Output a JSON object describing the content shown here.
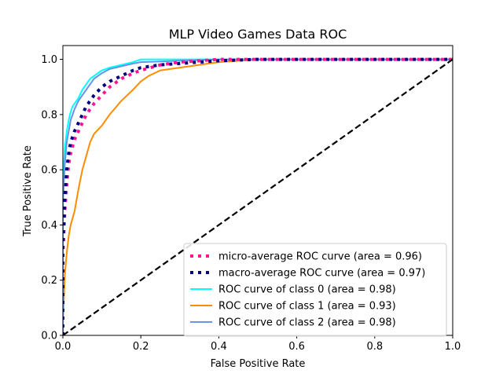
{
  "chart_data": {
    "type": "line",
    "title": "MLP Video Games Data ROC",
    "xlabel": "False Positive Rate",
    "ylabel": "True Positive Rate",
    "xlim": [
      0.0,
      1.0
    ],
    "ylim": [
      0.0,
      1.05
    ],
    "x_ticks": [
      "0.0",
      "0.2",
      "0.4",
      "0.6",
      "0.8",
      "1.0"
    ],
    "y_ticks": [
      "0.0",
      "0.2",
      "0.4",
      "0.6",
      "0.8",
      "1.0"
    ],
    "grid": false,
    "legend_position": "lower-right",
    "series": [
      {
        "name": "micro-average ROC curve (area = 0.96)",
        "color": "#ff1493",
        "style": "dotted",
        "x": [
          0.0,
          0.0,
          0.005,
          0.01,
          0.015,
          0.02,
          0.03,
          0.04,
          0.05,
          0.06,
          0.08,
          0.1,
          0.12,
          0.15,
          0.18,
          0.2,
          0.25,
          0.3,
          0.35,
          0.4,
          0.5,
          0.6,
          0.8,
          1.0
        ],
        "y": [
          0.0,
          0.3,
          0.45,
          0.55,
          0.62,
          0.66,
          0.71,
          0.74,
          0.77,
          0.8,
          0.84,
          0.87,
          0.9,
          0.93,
          0.95,
          0.96,
          0.98,
          0.99,
          0.995,
          1.0,
          1.0,
          1.0,
          1.0,
          1.0
        ]
      },
      {
        "name": "macro-average ROC curve (area = 0.97)",
        "color": "#000080",
        "style": "dotted",
        "x": [
          0.0,
          0.0,
          0.005,
          0.01,
          0.015,
          0.02,
          0.03,
          0.04,
          0.05,
          0.06,
          0.08,
          0.1,
          0.12,
          0.15,
          0.18,
          0.2,
          0.25,
          0.3,
          0.35,
          0.4,
          0.5,
          0.6,
          0.8,
          1.0
        ],
        "y": [
          0.0,
          0.32,
          0.5,
          0.6,
          0.66,
          0.7,
          0.74,
          0.77,
          0.8,
          0.83,
          0.87,
          0.9,
          0.92,
          0.94,
          0.96,
          0.97,
          0.98,
          0.985,
          0.99,
          0.995,
          1.0,
          1.0,
          1.0,
          1.0
        ]
      },
      {
        "name": "ROC curve of class 0 (area = 0.98)",
        "color": "#00ffff",
        "style": "solid",
        "x": [
          0.0,
          0.0,
          0.005,
          0.01,
          0.015,
          0.02,
          0.025,
          0.03,
          0.04,
          0.05,
          0.06,
          0.07,
          0.08,
          0.1,
          0.12,
          0.15,
          0.18,
          0.2,
          0.3,
          0.4,
          0.6,
          1.0
        ],
        "y": [
          0.0,
          0.55,
          0.68,
          0.74,
          0.78,
          0.81,
          0.83,
          0.84,
          0.86,
          0.89,
          0.91,
          0.93,
          0.94,
          0.96,
          0.97,
          0.98,
          0.99,
          1.0,
          1.0,
          1.0,
          1.0,
          1.0
        ]
      },
      {
        "name": "ROC curve of class 1 (area = 0.93)",
        "color": "#ff8c00",
        "style": "solid",
        "x": [
          0.0,
          0.0,
          0.003,
          0.005,
          0.01,
          0.015,
          0.02,
          0.03,
          0.04,
          0.05,
          0.06,
          0.07,
          0.08,
          0.1,
          0.12,
          0.15,
          0.18,
          0.2,
          0.22,
          0.25,
          0.3,
          0.35,
          0.4,
          0.45,
          0.5,
          0.55,
          0.6,
          1.0
        ],
        "y": [
          0.0,
          0.05,
          0.15,
          0.22,
          0.3,
          0.36,
          0.4,
          0.45,
          0.53,
          0.6,
          0.65,
          0.7,
          0.73,
          0.76,
          0.8,
          0.85,
          0.89,
          0.92,
          0.94,
          0.96,
          0.97,
          0.98,
          0.99,
          0.995,
          1.0,
          1.0,
          1.0,
          1.0
        ]
      },
      {
        "name": "ROC curve of class 2 (area = 0.98)",
        "color": "#6495ed",
        "style": "solid",
        "x": [
          0.0,
          0.0,
          0.005,
          0.01,
          0.015,
          0.02,
          0.025,
          0.03,
          0.04,
          0.05,
          0.06,
          0.07,
          0.08,
          0.1,
          0.12,
          0.15,
          0.18,
          0.2,
          0.3,
          0.4,
          0.6,
          1.0
        ],
        "y": [
          0.0,
          0.48,
          0.62,
          0.7,
          0.74,
          0.78,
          0.8,
          0.82,
          0.85,
          0.87,
          0.89,
          0.91,
          0.93,
          0.95,
          0.965,
          0.975,
          0.985,
          0.99,
          0.995,
          1.0,
          1.0,
          1.0
        ]
      },
      {
        "name": "",
        "color": "#000000",
        "style": "dashed",
        "x": [
          0.0,
          1.0
        ],
        "y": [
          0.0,
          1.0
        ]
      }
    ]
  }
}
